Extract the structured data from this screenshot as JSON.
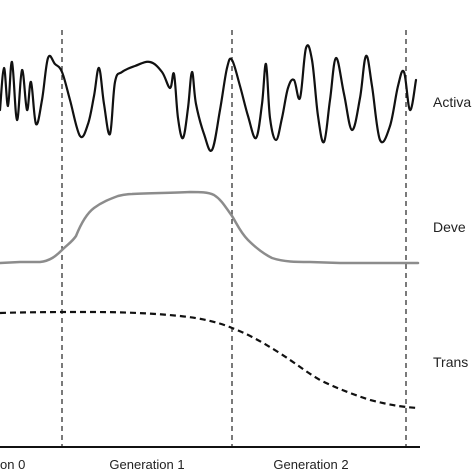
{
  "diagram": {
    "row_labels": {
      "activity": "Activa",
      "development": "Deve",
      "transmission": "Trans"
    },
    "generation_labels": [
      "on 0",
      "Generation 1",
      "Generation 2"
    ],
    "colors": {
      "activity_line": "#111111",
      "development_line": "#8c8c8c",
      "transmission_line": "#111111",
      "divider": "#333333",
      "axis": "#111111"
    },
    "line_styles": {
      "activity": "solid",
      "development": "solid",
      "transmission": "dashed"
    }
  }
}
